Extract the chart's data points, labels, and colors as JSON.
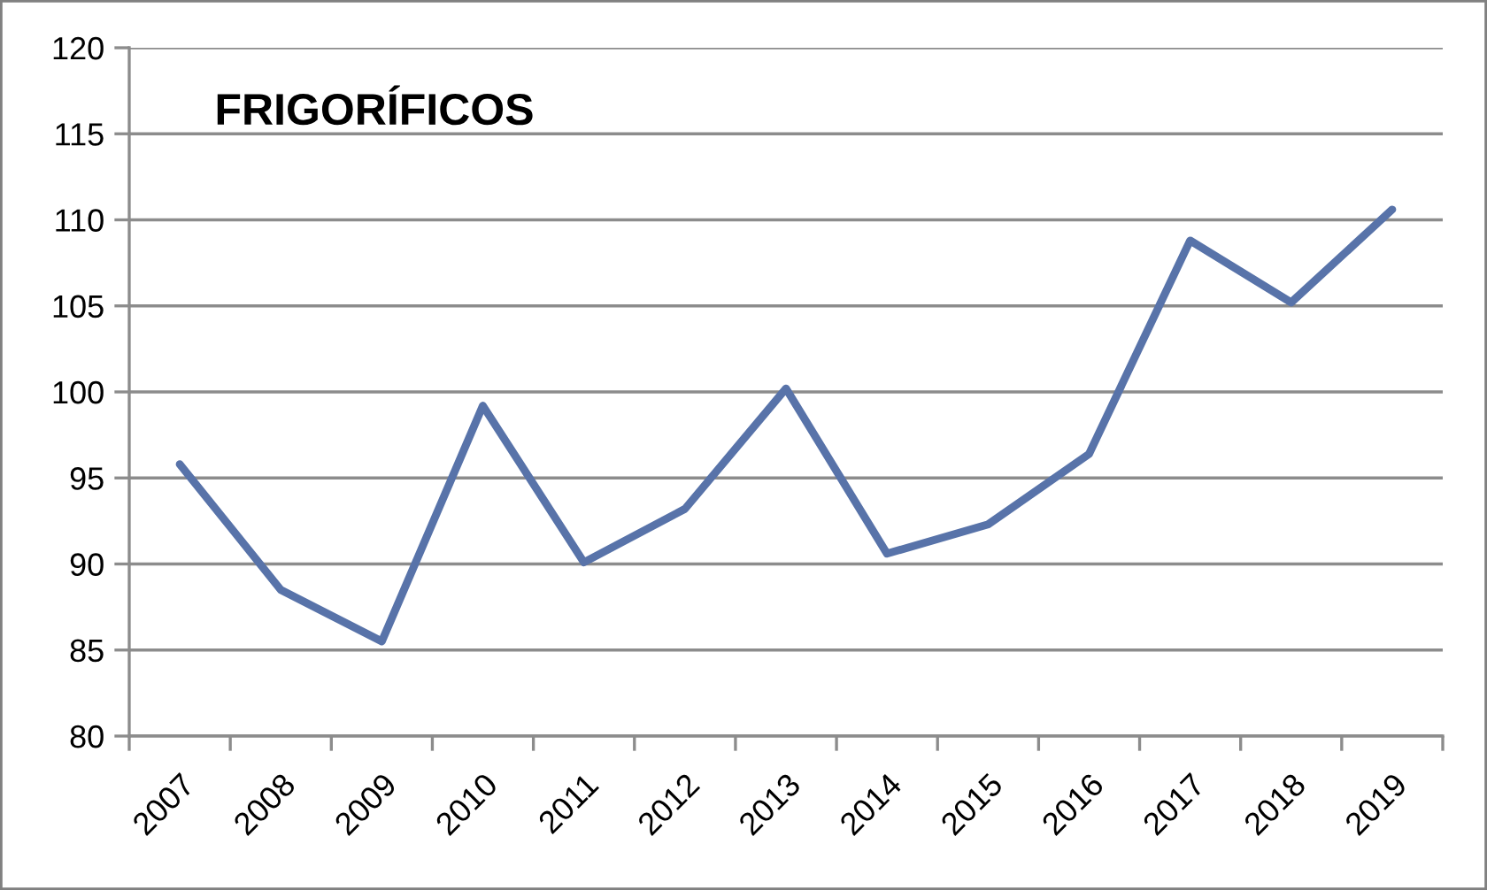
{
  "chart_data": {
    "type": "line",
    "title": "FRIGORÍFICOS",
    "categories": [
      "2007",
      "2008",
      "2009",
      "2010",
      "2011",
      "2012",
      "2013",
      "2014",
      "2015",
      "2016",
      "2017",
      "2018",
      "2019"
    ],
    "series": [
      {
        "color": "#5873a9",
        "values": [
          95.8,
          88.5,
          85.5,
          99.2,
          90.1,
          93.2,
          100.2,
          90.6,
          92.3,
          96.4,
          108.8,
          105.2,
          110.6
        ]
      }
    ],
    "ylim": [
      80,
      120
    ],
    "yticks": [
      80,
      85,
      90,
      95,
      100,
      105,
      110,
      115,
      120
    ],
    "grid": "y"
  }
}
